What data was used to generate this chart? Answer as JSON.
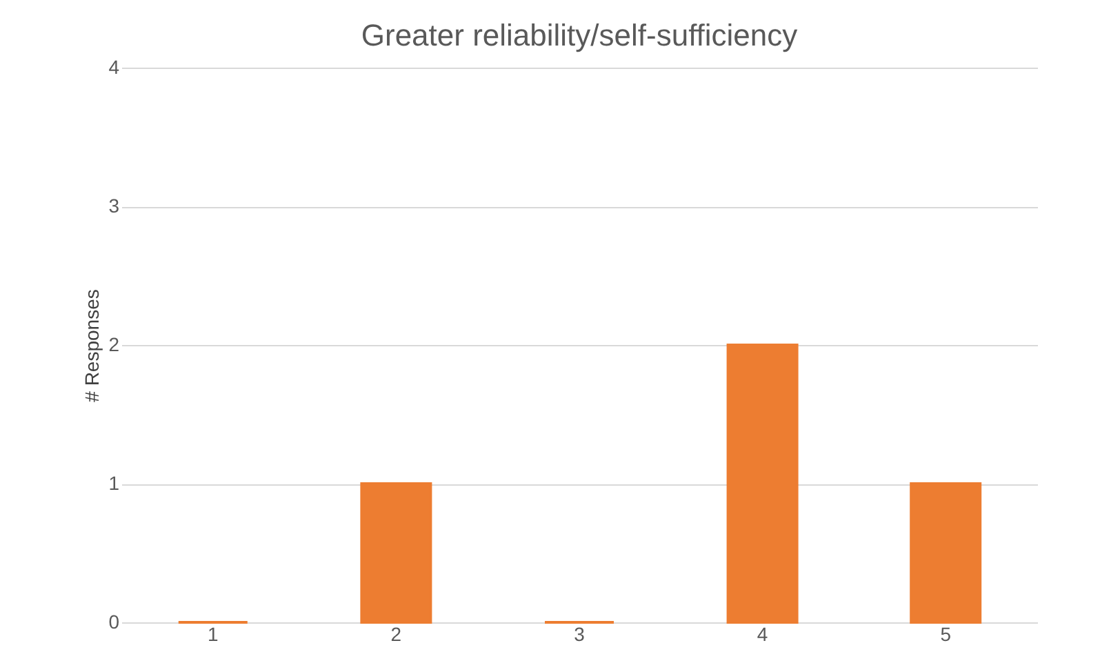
{
  "chart_data": {
    "type": "bar",
    "title": "Greater reliability/self-sufficiency",
    "ylabel": "# Responses",
    "categories": [
      "1",
      "2",
      "3",
      "4",
      "5"
    ],
    "values": [
      0,
      1,
      0,
      2,
      1
    ],
    "color": "#ed7d31",
    "ylim": [
      0,
      4
    ],
    "yticks": [
      0,
      1,
      2,
      3,
      4
    ],
    "grid": "y"
  }
}
